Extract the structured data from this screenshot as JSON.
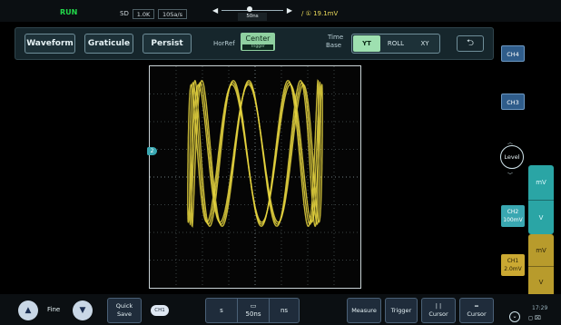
{
  "status": {
    "state": "RUN",
    "acq_mode": "SD",
    "memory_depth": "1.0K",
    "sample_rate": "10Sa/s",
    "timebase_readout": "50ns",
    "trigger_readout": "/ ① 19.1mV"
  },
  "menu": {
    "waveform": "Waveform",
    "graticule": "Graticule",
    "persist": "Persist",
    "horref_label": "HorRef",
    "horref_value": "Center",
    "horref_sub": "Trigger",
    "timebase_label_1": "Time",
    "timebase_label_2": "Base",
    "timebase_modes": [
      "YT",
      "ROLL",
      "XY"
    ],
    "timebase_active": "YT",
    "back_icon": "return-icon"
  },
  "channels": {
    "ch4": "CH4",
    "ch3": "CH3",
    "level": "Level",
    "ch2_name": "CH2",
    "ch2_scale": "100mV",
    "ch1_name": "CH1",
    "ch1_scale": "2.0mV",
    "teal_unit": "mV",
    "teal_dir": "V",
    "gold_unit": "mV",
    "gold_dir": "V",
    "marker": "2",
    "ch2_color": "#39a7b1",
    "ch1_color": "#cba932"
  },
  "trace": {
    "mode": "XY",
    "color": "#e8d640",
    "x_freq": 1,
    "y_freq": 7,
    "phase_shift": 0.35,
    "passes": 3
  },
  "bottom": {
    "fine_label": "Fine",
    "quick_save_1": "Quick",
    "quick_save_2": "Save",
    "ch_save_icon": "CH1",
    "unit_s": "s",
    "unit_value": "50ns",
    "unit_ns": "ns",
    "measure": "Measure",
    "trigger": "Trigger",
    "cursor_v": "Cursor",
    "cursor_h": "Cursor",
    "clock": "17:29"
  }
}
